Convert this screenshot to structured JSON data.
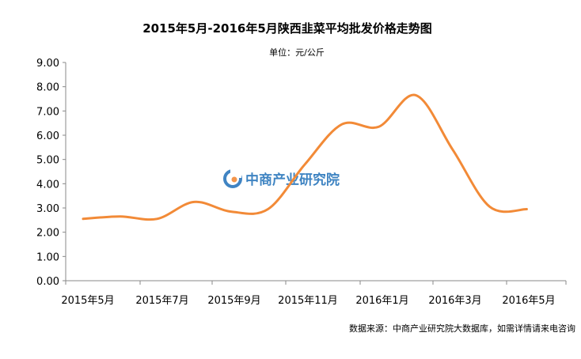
{
  "chart_data": {
    "type": "line",
    "title": "2015年5月-2016年5月陕西韭菜平均批发价格走势图",
    "subtitle": "单位：元/公斤",
    "xlabel": "",
    "ylabel": "",
    "ylim": [
      0,
      9
    ],
    "yticks": [
      "0.00",
      "1.00",
      "2.00",
      "3.00",
      "4.00",
      "5.00",
      "6.00",
      "7.00",
      "8.00",
      "9.00"
    ],
    "xticks": [
      "2015年5月",
      "2015年7月",
      "2015年9月",
      "2015年11月",
      "2016年1月",
      "2016年3月",
      "2016年5月"
    ],
    "categories": [
      "2015年5月",
      "2015年6月",
      "2015年7月",
      "2015年8月",
      "2015年9月",
      "2015年10月",
      "2015年11月",
      "2015年12月",
      "2016年1月",
      "2016年2月",
      "2016年3月",
      "2016年4月",
      "2016年5月"
    ],
    "series": [
      {
        "values": [
          2.55,
          2.65,
          2.55,
          3.25,
          2.85,
          2.95,
          4.8,
          6.45,
          6.35,
          7.65,
          5.4,
          3.05,
          2.95
        ],
        "color": "#f28a37"
      }
    ],
    "grid": false,
    "legend": "none",
    "watermark": "中商产业研究院",
    "source": "数据来源：中商产业研究院大数据库，如需详情请来电咨询"
  }
}
